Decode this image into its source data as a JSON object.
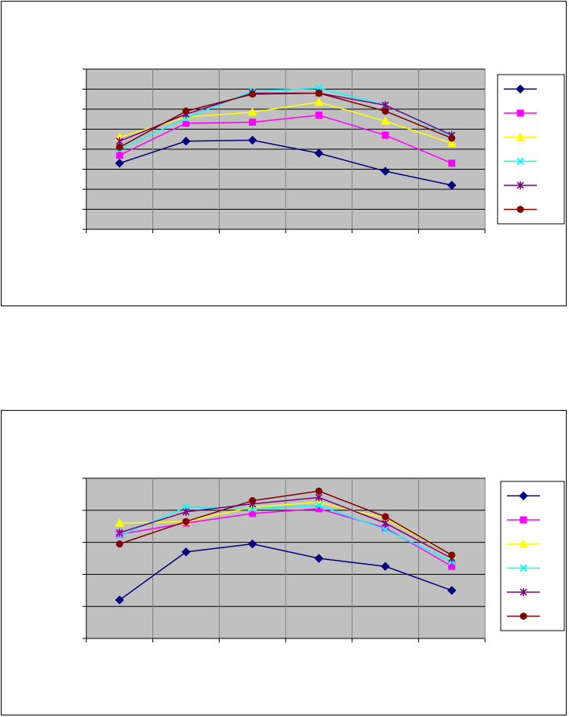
{
  "chart_data": [
    {
      "type": "line",
      "title": "",
      "xlabel": "",
      "ylabel": "",
      "categories": [
        "",
        "",
        "",
        "",
        "",
        ""
      ],
      "ylim": [
        0,
        8
      ],
      "grid": {
        "horizontal": true,
        "vertical": true
      },
      "legend_placement": "right",
      "plot_background": "#c0c0c0",
      "series": [
        {
          "color": "#000080",
          "marker": "diamond",
          "values": [
            3.3,
            4.4,
            4.45,
            3.8,
            2.9,
            2.2
          ]
        },
        {
          "color": "#ff00ff",
          "marker": "square",
          "values": [
            3.7,
            5.3,
            5.35,
            5.7,
            4.7,
            3.3
          ]
        },
        {
          "color": "#ffff00",
          "marker": "triangle",
          "values": [
            4.6,
            5.6,
            5.85,
            6.35,
            5.4,
            4.3
          ]
        },
        {
          "color": "#00ffff",
          "marker": "x",
          "values": [
            4.0,
            5.55,
            6.9,
            7.05,
            6.2,
            4.65
          ]
        },
        {
          "color": "#800080",
          "marker": "star",
          "values": [
            4.4,
            5.75,
            6.8,
            6.8,
            6.2,
            4.7
          ]
        },
        {
          "color": "#800000",
          "marker": "circle",
          "values": [
            4.1,
            5.9,
            6.75,
            6.8,
            5.9,
            4.55
          ]
        }
      ]
    },
    {
      "type": "line",
      "title": "",
      "xlabel": "",
      "ylabel": "",
      "categories": [
        "",
        "",
        "",
        "",
        "",
        ""
      ],
      "ylim": [
        0,
        5
      ],
      "grid": {
        "horizontal": true,
        "vertical": true
      },
      "legend_placement": "right",
      "plot_background": "#c0c0c0",
      "series": [
        {
          "color": "#000080",
          "marker": "diamond",
          "values": [
            1.2,
            2.7,
            2.95,
            2.5,
            2.25,
            1.5
          ]
        },
        {
          "color": "#ff00ff",
          "marker": "square",
          "values": [
            3.25,
            3.6,
            3.9,
            4.05,
            3.45,
            2.25
          ]
        },
        {
          "color": "#ffff00",
          "marker": "triangle",
          "values": [
            3.6,
            3.65,
            4.1,
            4.25,
            3.75,
            2.6
          ]
        },
        {
          "color": "#00ffff",
          "marker": "x",
          "values": [
            3.2,
            4.1,
            4.05,
            4.15,
            3.4,
            2.4
          ]
        },
        {
          "color": "#800080",
          "marker": "star",
          "values": [
            3.3,
            3.95,
            4.2,
            4.4,
            3.6,
            2.5
          ]
        },
        {
          "color": "#800000",
          "marker": "circle",
          "values": [
            2.95,
            3.65,
            4.3,
            4.6,
            3.8,
            2.6
          ]
        }
      ]
    }
  ]
}
